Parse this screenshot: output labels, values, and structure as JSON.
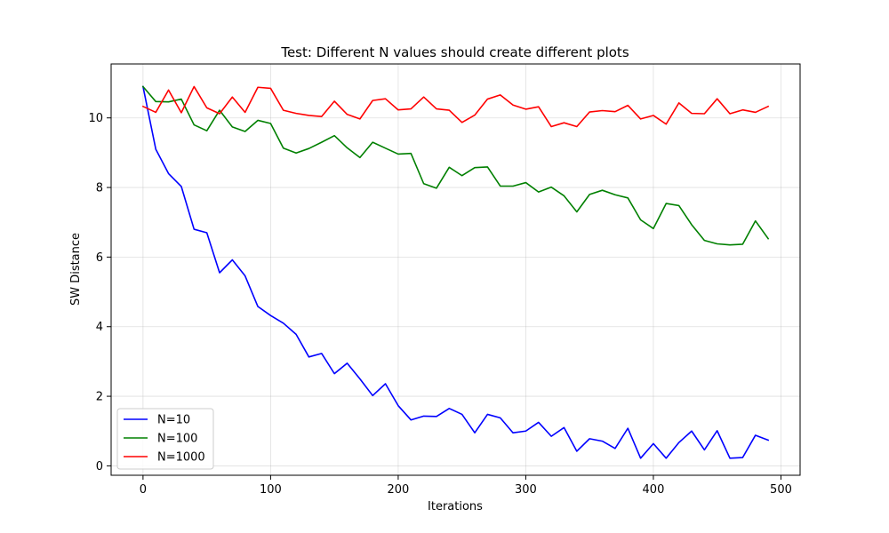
{
  "chart_data": {
    "type": "line",
    "title": "Test: Different N values should create different plots",
    "xlabel": "Iterations",
    "ylabel": "SW Distance",
    "xlim": [
      -25,
      515
    ],
    "ylim": [
      -0.27,
      11.55
    ],
    "xticks": [
      0,
      100,
      200,
      300,
      400,
      500
    ],
    "yticks": [
      0,
      2,
      4,
      6,
      8,
      10
    ],
    "grid": true,
    "legend_position": "lower-left",
    "x": [
      0,
      10,
      20,
      30,
      40,
      50,
      60,
      70,
      80,
      90,
      100,
      110,
      120,
      130,
      140,
      150,
      160,
      170,
      180,
      190,
      200,
      210,
      220,
      230,
      240,
      250,
      260,
      270,
      280,
      290,
      300,
      310,
      320,
      330,
      340,
      350,
      360,
      370,
      380,
      390,
      400,
      410,
      420,
      430,
      440,
      450,
      460,
      470,
      480,
      490
    ],
    "series": [
      {
        "name": "N=10",
        "color": "#0000ff",
        "values": [
          10.9,
          9.1,
          8.4,
          8.03,
          6.8,
          6.7,
          5.55,
          5.92,
          5.46,
          4.58,
          4.32,
          4.1,
          3.78,
          3.13,
          3.23,
          2.65,
          2.95,
          2.5,
          2.02,
          2.36,
          1.73,
          1.32,
          1.43,
          1.42,
          1.65,
          1.48,
          0.95,
          1.48,
          1.38,
          0.95,
          1.0,
          1.25,
          0.85,
          1.1,
          0.42,
          0.78,
          0.71,
          0.5,
          1.08,
          0.22,
          0.64,
          0.22,
          0.67,
          1.0,
          0.46,
          1.01,
          0.22,
          0.24,
          0.88,
          0.74
        ]
      },
      {
        "name": "N=100",
        "color": "#008000",
        "values": [
          10.9,
          10.47,
          10.46,
          10.54,
          9.8,
          9.63,
          10.22,
          9.74,
          9.61,
          9.93,
          9.84,
          9.13,
          8.99,
          9.12,
          9.3,
          9.49,
          9.14,
          8.86,
          9.3,
          9.13,
          8.96,
          8.98,
          8.11,
          7.98,
          8.58,
          8.34,
          8.57,
          8.59,
          8.04,
          8.04,
          8.14,
          7.87,
          8.01,
          7.76,
          7.3,
          7.8,
          7.92,
          7.79,
          7.7,
          7.07,
          6.82,
          7.54,
          7.48,
          6.93,
          6.48,
          6.38,
          6.35,
          6.37,
          7.04,
          6.53
        ]
      },
      {
        "name": "N=1000",
        "color": "#ff0000",
        "values": [
          10.33,
          10.16,
          10.8,
          10.15,
          10.9,
          10.29,
          10.12,
          10.6,
          10.16,
          10.88,
          10.85,
          10.22,
          10.13,
          10.07,
          10.04,
          10.48,
          10.1,
          9.97,
          10.5,
          10.55,
          10.23,
          10.26,
          10.6,
          10.26,
          10.22,
          9.87,
          10.08,
          10.54,
          10.66,
          10.37,
          10.25,
          10.32,
          9.75,
          9.86,
          9.75,
          10.17,
          10.21,
          10.18,
          10.36,
          9.97,
          10.07,
          9.82,
          10.43,
          10.13,
          10.12,
          10.55,
          10.12,
          10.23,
          10.16,
          10.33
        ]
      }
    ]
  }
}
